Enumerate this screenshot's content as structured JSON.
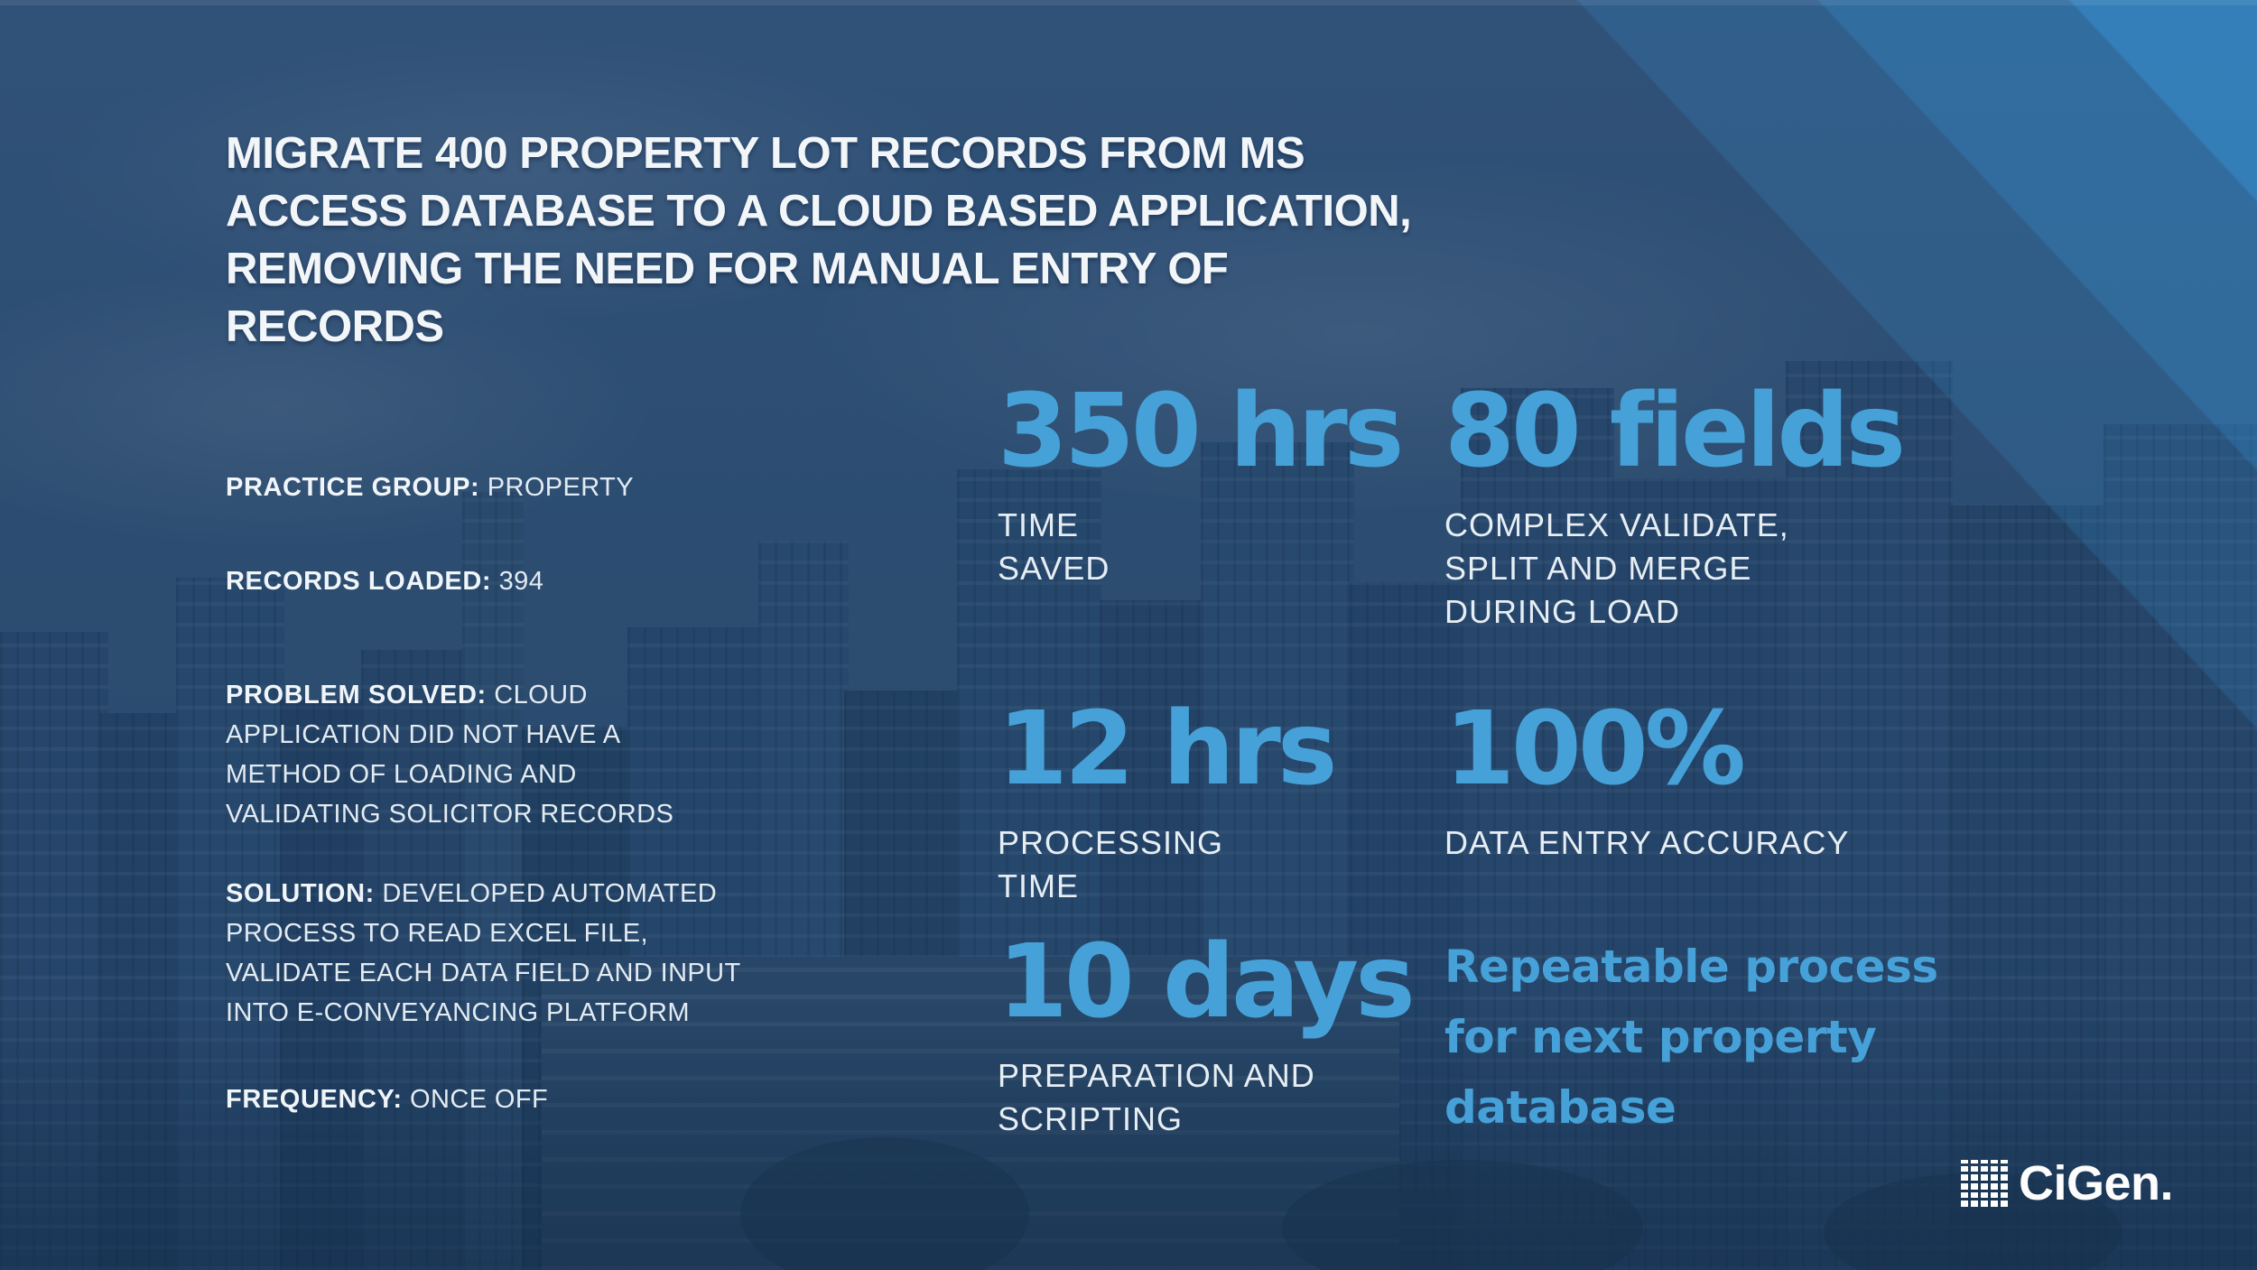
{
  "title": "MIGRATE 400 PROPERTY LOT RECORDS FROM MS\nACCESS DATABASE TO A CLOUD BASED APPLICATION,\nREMOVING THE NEED FOR MANUAL ENTRY OF\nRECORDS",
  "details": [
    {
      "label": "PRACTICE GROUP:",
      "value": "PROPERTY"
    },
    {
      "label": "RECORDS LOADED:",
      "value": "394"
    },
    {
      "label": "PROBLEM SOLVED:",
      "value": "CLOUD\nAPPLICATION DID NOT HAVE A\nMETHOD OF LOADING AND\nVALIDATING SOLICITOR RECORDS"
    },
    {
      "label": "SOLUTION:",
      "value": "DEVELOPED AUTOMATED\nPROCESS TO READ EXCEL FILE,\nVALIDATE EACH DATA FIELD AND INPUT\nINTO E-CONVEYANCING PLATFORM"
    },
    {
      "label": "FREQUENCY:",
      "value": "ONCE OFF"
    }
  ],
  "stats": [
    {
      "value": "350 hrs",
      "label": "TIME\nSAVED"
    },
    {
      "value": "80 fields",
      "label": "COMPLEX VALIDATE,\nSPLIT AND MERGE\nDURING LOAD"
    },
    {
      "value": "12 hrs",
      "label": "PROCESSING\nTIME"
    },
    {
      "value": "100%",
      "label": "DATA ENTRY ACCURACY"
    },
    {
      "value": "10 days",
      "label": "PREPARATION AND\nSCRIPTING"
    }
  ],
  "highlight": "Repeatable process\nfor next property\ndatabase",
  "logo": {
    "name": "CiGen.",
    "grid_icon": "pixel-grid"
  },
  "colors": {
    "accent": "#46a1d8",
    "background": "#2e5174",
    "text": "#f2f6f9"
  }
}
